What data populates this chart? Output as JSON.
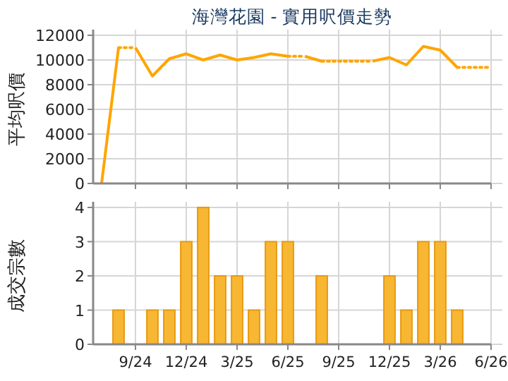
{
  "chart_data": [
    {
      "type": "line",
      "title": "海灣花園 - 實用呎價走勢",
      "ylabel": "平均呎價",
      "xlim": [
        "2024-06-16",
        "2026-06"
      ],
      "ylim": [
        0,
        12000
      ],
      "yticks": [
        0,
        2000,
        4000,
        6000,
        8000,
        10000,
        12000
      ],
      "xticks": [
        {
          "value": "2024-09",
          "label": null
        },
        {
          "value": "2024-12",
          "label": null
        },
        {
          "value": "2025-03",
          "label": null
        },
        {
          "value": "2025-06",
          "label": null
        },
        {
          "value": "2025-09",
          "label": null
        },
        {
          "value": "2025-12",
          "label": null
        },
        {
          "value": "2026-03",
          "label": null
        },
        {
          "value": "2026-06",
          "label": null
        }
      ],
      "tick_labels": "y",
      "grid": true,
      "marker": "none",
      "series": [
        {
          "color": "#ffa500",
          "line_style": "solid",
          "x": [
            "2024-07",
            "2024-08"
          ],
          "values": [
            0,
            11000
          ]
        },
        {
          "color": "#ffa500",
          "line_style": "dotted",
          "x": [
            "2024-08",
            "2024-09"
          ],
          "values": [
            11000,
            11000
          ]
        },
        {
          "color": "#ffa500",
          "line_style": "solid",
          "x": [
            "2024-09",
            "2024-10",
            "2024-11",
            "2024-12",
            "2025-01",
            "2025-02",
            "2025-03",
            "2025-04",
            "2025-05",
            "2025-06"
          ],
          "values": [
            11000,
            8700,
            10100,
            10500,
            10000,
            10400,
            10000,
            10200,
            10500,
            10300
          ]
        },
        {
          "color": "#ffa500",
          "line_style": "dotted",
          "x": [
            "2025-06",
            "2025-07"
          ],
          "values": [
            10300,
            10300
          ]
        },
        {
          "color": "#ffa500",
          "line_style": "solid",
          "x": [
            "2025-07",
            "2025-08"
          ],
          "values": [
            10300,
            9900
          ]
        },
        {
          "color": "#ffa500",
          "line_style": "dotted",
          "x": [
            "2025-08",
            "2025-09",
            "2025-10",
            "2025-11"
          ],
          "values": [
            9900,
            9900,
            9900,
            9900
          ]
        },
        {
          "color": "#ffa500",
          "line_style": "solid",
          "x": [
            "2025-11",
            "2025-12",
            "2026-01",
            "2026-02",
            "2026-03",
            "2026-04"
          ],
          "values": [
            9900,
            10200,
            9600,
            11100,
            10800,
            9400
          ]
        },
        {
          "color": "#ffa500",
          "line_style": "dotted",
          "x": [
            "2026-04",
            "2026-05",
            "2026-06"
          ],
          "values": [
            9400,
            9400,
            9400
          ]
        }
      ]
    },
    {
      "type": "bar",
      "ylabel": "成交宗數",
      "xlim": [
        "2024-06-16",
        "2026-06"
      ],
      "ylim": [
        0,
        4
      ],
      "yticks": [
        0,
        1,
        2,
        3,
        4
      ],
      "xticks": [
        {
          "value": "2024-09",
          "label": "9/24"
        },
        {
          "value": "2024-12",
          "label": "12/24"
        },
        {
          "value": "2025-03",
          "label": "3/25"
        },
        {
          "value": "2025-06",
          "label": "6/25"
        },
        {
          "value": "2025-09",
          "label": "9/25"
        },
        {
          "value": "2025-12",
          "label": "12/25"
        },
        {
          "value": "2026-03",
          "label": "3/26"
        },
        {
          "value": "2026-06",
          "label": "6/26"
        }
      ],
      "grid": true,
      "color": "#f7b733",
      "x": [
        "2024-08",
        "2024-10",
        "2024-11",
        "2024-12",
        "2025-01",
        "2025-02",
        "2025-03",
        "2025-04",
        "2025-05",
        "2025-06",
        "2025-08",
        "2025-12",
        "2026-01",
        "2026-02",
        "2026-03",
        "2026-04"
      ],
      "values": [
        1,
        1,
        1,
        3,
        4,
        2,
        2,
        1,
        3,
        3,
        2,
        2,
        1,
        3,
        3,
        1
      ]
    }
  ]
}
